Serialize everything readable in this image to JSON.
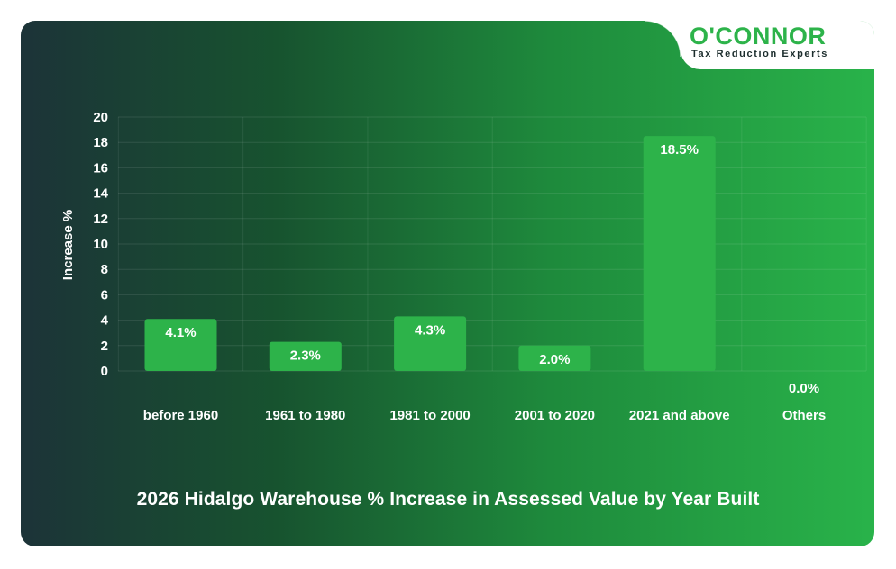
{
  "brand": {
    "name": "O'CONNOR",
    "tagline": "Tax Reduction Experts",
    "color": "#2db34a"
  },
  "chart_data": {
    "type": "bar",
    "title": "2026 Hidalgo Warehouse % Increase in Assessed Value by Year Built",
    "xlabel": "",
    "ylabel": "Increase %",
    "categories": [
      "before 1960",
      "1961 to 1980",
      "1981 to 2000",
      "2001 to 2020",
      "2021 and above",
      "Others"
    ],
    "values": [
      4.1,
      2.3,
      4.3,
      2.0,
      18.5,
      0.0
    ],
    "data_labels": [
      "4.1%",
      "2.3%",
      "4.3%",
      "2.0%",
      "18.5%",
      "0.0%"
    ],
    "ylim": [
      0,
      20
    ],
    "yticks": [
      0,
      2,
      4,
      6,
      8,
      10,
      12,
      14,
      16,
      18,
      20
    ],
    "grid": true,
    "bar_color": "#2db34a"
  }
}
